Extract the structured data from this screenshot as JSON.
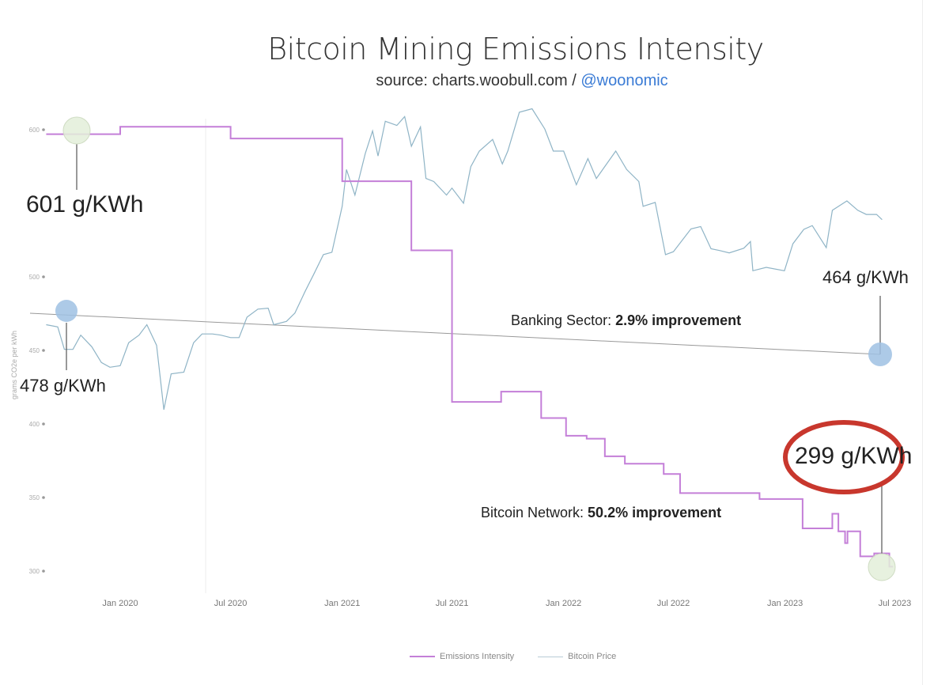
{
  "chart_data": {
    "type": "line",
    "title": "Bitcoin Mining Emissions Intensity",
    "subtitle": {
      "text": "source: charts.woobull.com / ",
      "handle": "@woonomic"
    },
    "ylabel": "grams CO2e per kWh",
    "ylim": [
      290,
      615
    ],
    "yticks": [
      "600",
      "500",
      "450",
      "400",
      "350",
      "300"
    ],
    "xticks": [
      "Jan 2020",
      "Jul 2020",
      "Jan 2021",
      "Jul 2021",
      "Jan 2022",
      "Jul 2022",
      "Jan 2023",
      "Jul 2023"
    ],
    "grid": false,
    "legend": {
      "position": "bottom",
      "entries": [
        "Emissions Intensity",
        "Bitcoin Price"
      ]
    },
    "colors": {
      "emissions": "#c47fd8",
      "price": "#8fb4c6",
      "banking": "#999999",
      "highlight": "#c8372d",
      "handle": "#3a7bd5"
    },
    "series": [
      {
        "name": "Emissions Intensity",
        "step": true,
        "points": [
          [
            "2019-09-01",
            597
          ],
          [
            "2020-01-01",
            602
          ],
          [
            "2020-07-01",
            594
          ],
          [
            "2021-01-01",
            565
          ],
          [
            "2021-04-25",
            518
          ],
          [
            "2021-07-01",
            415
          ],
          [
            "2021-09-20",
            422
          ],
          [
            "2021-11-25",
            404
          ],
          [
            "2022-01-05",
            392
          ],
          [
            "2022-02-08",
            390
          ],
          [
            "2022-03-10",
            378
          ],
          [
            "2022-04-12",
            373
          ],
          [
            "2022-06-15",
            366
          ],
          [
            "2022-07-12",
            353
          ],
          [
            "2022-11-20",
            349
          ],
          [
            "2023-01-30",
            329
          ],
          [
            "2023-03-20",
            339
          ],
          [
            "2023-03-30",
            327
          ],
          [
            "2023-04-10",
            319
          ],
          [
            "2023-04-14",
            327
          ],
          [
            "2023-05-05",
            310
          ],
          [
            "2023-05-28",
            312
          ],
          [
            "2023-06-22",
            303
          ],
          [
            "2023-06-28",
            303
          ]
        ]
      },
      {
        "name": "Bitcoin Price",
        "scale": "log",
        "points": [
          [
            "2019-09-01",
            10300
          ],
          [
            "2019-09-20",
            10100
          ],
          [
            "2019-10-01",
            8300
          ],
          [
            "2019-10-15",
            8300
          ],
          [
            "2019-10-28",
            9400
          ],
          [
            "2019-11-15",
            8500
          ],
          [
            "2019-12-01",
            7400
          ],
          [
            "2019-12-15",
            7100
          ],
          [
            "2020-01-01",
            7200
          ],
          [
            "2020-01-15",
            8800
          ],
          [
            "2020-02-01",
            9400
          ],
          [
            "2020-02-14",
            10300
          ],
          [
            "2020-03-01",
            8600
          ],
          [
            "2020-03-13",
            4900
          ],
          [
            "2020-03-25",
            6700
          ],
          [
            "2020-04-15",
            6800
          ],
          [
            "2020-05-01",
            8800
          ],
          [
            "2020-05-15",
            9500
          ],
          [
            "2020-06-01",
            9500
          ],
          [
            "2020-06-15",
            9400
          ],
          [
            "2020-07-01",
            9200
          ],
          [
            "2020-07-15",
            9200
          ],
          [
            "2020-07-28",
            11000
          ],
          [
            "2020-08-15",
            11800
          ],
          [
            "2020-09-01",
            11900
          ],
          [
            "2020-09-10",
            10300
          ],
          [
            "2020-10-01",
            10600
          ],
          [
            "2020-10-15",
            11400
          ],
          [
            "2020-11-01",
            13800
          ],
          [
            "2020-11-15",
            16000
          ],
          [
            "2020-12-01",
            19000
          ],
          [
            "2020-12-15",
            19400
          ],
          [
            "2021-01-01",
            29000
          ],
          [
            "2021-01-08",
            40000
          ],
          [
            "2021-01-22",
            32000
          ],
          [
            "2021-02-08",
            46000
          ],
          [
            "2021-02-20",
            56000
          ],
          [
            "2021-03-01",
            45000
          ],
          [
            "2021-03-13",
            61000
          ],
          [
            "2021-04-01",
            58800
          ],
          [
            "2021-04-14",
            63500
          ],
          [
            "2021-04-25",
            49000
          ],
          [
            "2021-05-10",
            58000
          ],
          [
            "2021-05-19",
            37000
          ],
          [
            "2021-06-01",
            36000
          ],
          [
            "2021-06-22",
            32000
          ],
          [
            "2021-07-01",
            34000
          ],
          [
            "2021-07-20",
            29800
          ],
          [
            "2021-08-01",
            41000
          ],
          [
            "2021-08-15",
            47000
          ],
          [
            "2021-09-06",
            52000
          ],
          [
            "2021-09-22",
            42000
          ],
          [
            "2021-10-01",
            47000
          ],
          [
            "2021-10-20",
            66000
          ],
          [
            "2021-11-10",
            68000
          ],
          [
            "2021-12-01",
            57000
          ],
          [
            "2021-12-15",
            47000
          ],
          [
            "2022-01-01",
            47000
          ],
          [
            "2022-01-22",
            35000
          ],
          [
            "2022-02-10",
            44000
          ],
          [
            "2022-02-24",
            37000
          ],
          [
            "2022-03-28",
            47000
          ],
          [
            "2022-04-15",
            40000
          ],
          [
            "2022-05-05",
            36000
          ],
          [
            "2022-05-12",
            29000
          ],
          [
            "2022-06-01",
            30000
          ],
          [
            "2022-06-18",
            19000
          ],
          [
            "2022-07-01",
            19500
          ],
          [
            "2022-07-30",
            23800
          ],
          [
            "2022-08-15",
            24300
          ],
          [
            "2022-09-01",
            20000
          ],
          [
            "2022-09-15",
            19700
          ],
          [
            "2022-10-01",
            19300
          ],
          [
            "2022-10-25",
            20100
          ],
          [
            "2022-11-05",
            21300
          ],
          [
            "2022-11-09",
            16500
          ],
          [
            "2022-12-01",
            17000
          ],
          [
            "2022-12-31",
            16500
          ],
          [
            "2023-01-14",
            20900
          ],
          [
            "2023-02-01",
            23700
          ],
          [
            "2023-02-15",
            24500
          ],
          [
            "2023-03-10",
            20200
          ],
          [
            "2023-03-20",
            28000
          ],
          [
            "2023-04-13",
            30400
          ],
          [
            "2023-05-01",
            28000
          ],
          [
            "2023-05-15",
            27000
          ],
          [
            "2023-06-01",
            27000
          ],
          [
            "2023-06-10",
            25800
          ]
        ]
      }
    ],
    "annotations": {
      "start_emissions": "601 g/KWh",
      "end_emissions": "299 g/KWh",
      "start_banking": "478 g/KWh",
      "end_banking": "464 g/KWh",
      "banking_label": "Banking Sector: ",
      "banking_value": "2.9% improvement",
      "bitcoin_label": "Bitcoin Network: ",
      "bitcoin_value": "50.2% improvement"
    },
    "banking_line": {
      "start": 478,
      "end": 464
    }
  }
}
